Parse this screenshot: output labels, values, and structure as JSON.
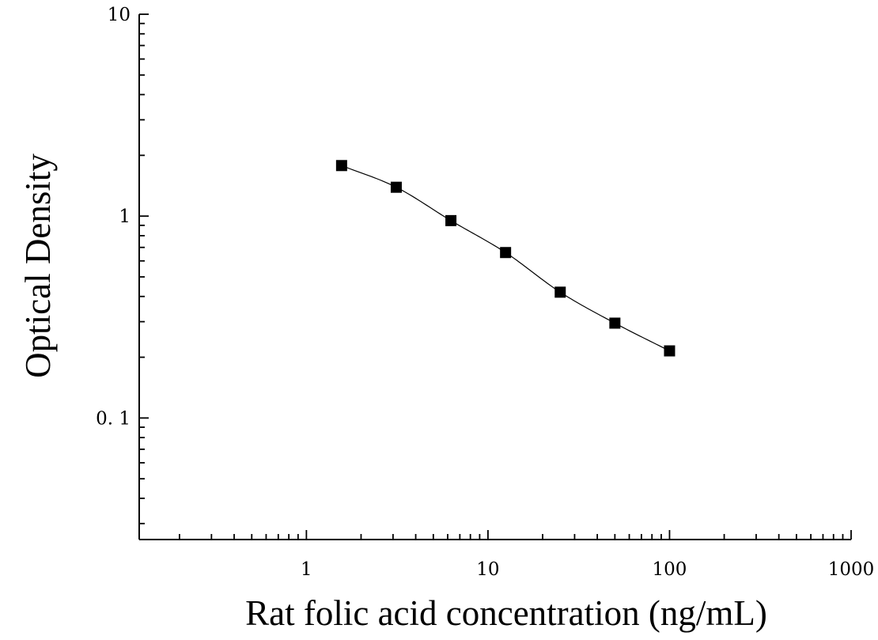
{
  "chart_data": {
    "type": "scatter",
    "xlabel": "Rat folic acid concentration (ng/mL)",
    "ylabel": "Optical Density",
    "xscale": "log",
    "yscale": "log",
    "xlim": [
      0.12,
      1000
    ],
    "ylim": [
      0.025,
      10
    ],
    "x_tick_labels": [
      "1",
      "10",
      "100",
      "1000"
    ],
    "x_tick_values": [
      1,
      10,
      100,
      1000
    ],
    "y_tick_labels": [
      "10",
      "1",
      "0. 1"
    ],
    "y_tick_values": [
      10,
      1,
      0.1
    ],
    "grid": false,
    "series": [
      {
        "marker": "square",
        "color": "#000000",
        "x": [
          1.5625,
          3.125,
          6.25,
          12.5,
          25,
          50,
          100
        ],
        "y": [
          1.78,
          1.39,
          0.95,
          0.66,
          0.42,
          0.295,
          0.215
        ],
        "fit_curve": true
      }
    ]
  }
}
